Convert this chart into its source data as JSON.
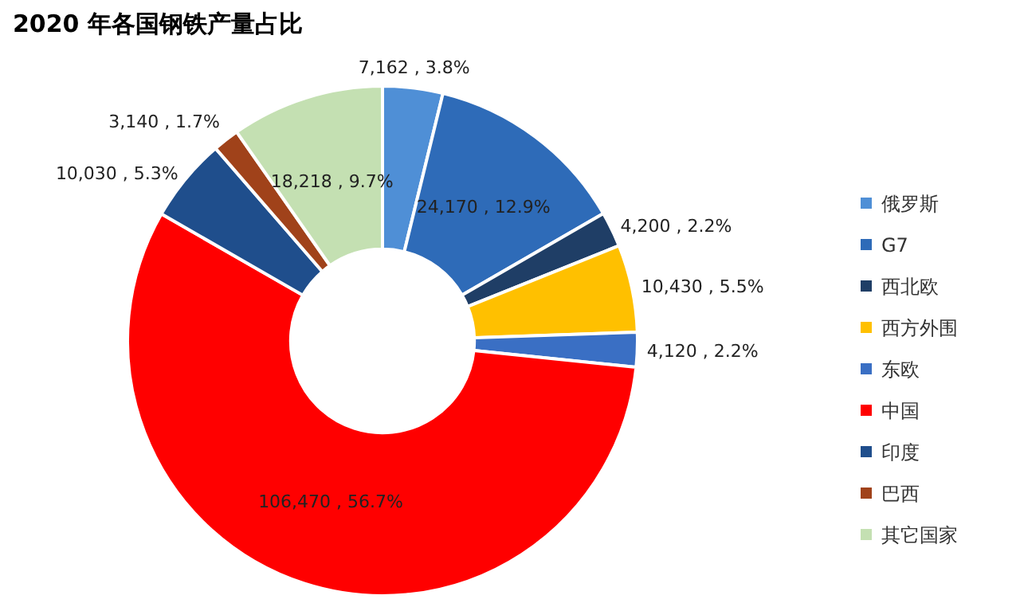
{
  "chart_data": {
    "type": "donut",
    "title": "2020 年各国钢铁产量占比",
    "categories": [
      "俄罗斯",
      "G7",
      "西北欧",
      "西方外围",
      "东欧",
      "中国",
      "印度",
      "巴西",
      "其它国家"
    ],
    "values": [
      7162,
      24170,
      4200,
      10430,
      4120,
      106470,
      10030,
      3140,
      18218
    ],
    "value_labels": [
      "7,162 , 3.8%",
      "24,170 , 12.9%",
      "4,200 , 2.2%",
      "10,430 , 5.5%",
      "4,120 , 2.2%",
      "106,470 , 56.7%",
      "10,030 , 5.3%",
      "3,140 , 1.7%",
      "18,218 , 9.7%"
    ],
    "colors": [
      "#4f8fd6",
      "#2e6bb8",
      "#1f3e66",
      "#ffc000",
      "#3a6fc4",
      "#ff0000",
      "#1f4e8c",
      "#a0421a",
      "#c4e0b2"
    ],
    "legend": "right"
  }
}
